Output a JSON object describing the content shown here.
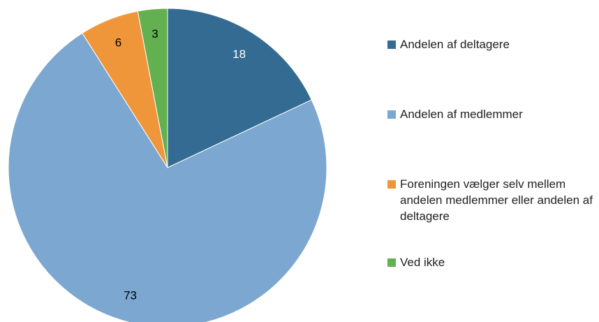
{
  "chart_data": {
    "type": "pie",
    "categories": [
      "Andelen af deltagere",
      "Andelen af medlemmer",
      "Foreningen vælger selv mellem andelen medlemmer eller andelen af deltagere",
      "Ved ikke"
    ],
    "values": [
      18,
      73,
      6,
      3
    ],
    "colors": [
      "#336b93",
      "#7ba7d0",
      "#f0963a",
      "#62b04f"
    ],
    "label_colors": [
      "#ffffff",
      "#000000",
      "#000000",
      "#000000"
    ],
    "legend": "right"
  }
}
